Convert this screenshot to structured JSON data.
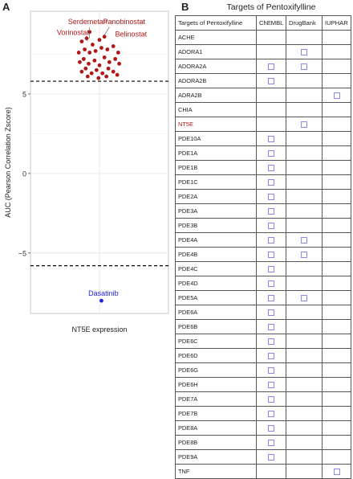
{
  "panels": {
    "a": "A",
    "b": "B"
  },
  "chart_data": {
    "type": "scatter",
    "xlabel": "NT5E expression",
    "ylabel": "AUC (Pearson Correlation Zscore)",
    "ylim": [
      -8.8,
      10.2
    ],
    "yticks": [
      -5,
      0,
      5
    ],
    "ytick_labels": [
      "−5",
      "0",
      "5"
    ],
    "threshold_lines": [
      5.8,
      -5.8
    ],
    "grid": true,
    "series": [
      {
        "color": "#b01818",
        "points": [
          {
            "x": 0.52,
            "y": 8.3
          },
          {
            "x": 0.57,
            "y": 8.5
          },
          {
            "x": 0.63,
            "y": 8.1
          },
          {
            "x": 0.7,
            "y": 8.4
          },
          {
            "x": 0.49,
            "y": 7.6
          },
          {
            "x": 0.55,
            "y": 7.8
          },
          {
            "x": 0.6,
            "y": 7.6
          },
          {
            "x": 0.66,
            "y": 7.7
          },
          {
            "x": 0.72,
            "y": 7.9
          },
          {
            "x": 0.78,
            "y": 7.8
          },
          {
            "x": 0.84,
            "y": 8.0
          },
          {
            "x": 0.89,
            "y": 7.6
          },
          {
            "x": 0.5,
            "y": 7.0
          },
          {
            "x": 0.54,
            "y": 7.2
          },
          {
            "x": 0.59,
            "y": 6.9
          },
          {
            "x": 0.65,
            "y": 7.1
          },
          {
            "x": 0.7,
            "y": 6.8
          },
          {
            "x": 0.75,
            "y": 7.3
          },
          {
            "x": 0.8,
            "y": 7.0
          },
          {
            "x": 0.86,
            "y": 7.2
          },
          {
            "x": 0.9,
            "y": 6.9
          },
          {
            "x": 0.52,
            "y": 6.4
          },
          {
            "x": 0.56,
            "y": 6.6
          },
          {
            "x": 0.62,
            "y": 6.3
          },
          {
            "x": 0.67,
            "y": 6.5
          },
          {
            "x": 0.73,
            "y": 6.3
          },
          {
            "x": 0.79,
            "y": 6.6
          },
          {
            "x": 0.84,
            "y": 6.4
          },
          {
            "x": 0.88,
            "y": 6.2
          },
          {
            "x": 0.58,
            "y": 6.1
          },
          {
            "x": 0.69,
            "y": 6.0
          },
          {
            "x": 0.77,
            "y": 6.1
          },
          {
            "x": 0.6,
            "y": 8.9
          },
          {
            "x": 0.75,
            "y": 8.6
          }
        ]
      },
      {
        "color": "#2222dd",
        "points": [
          {
            "x": 0.72,
            "y": -8.0
          }
        ]
      }
    ],
    "annotations": [
      {
        "text": "Serdemetan",
        "color": "#b01818",
        "x": 0.58,
        "y": 9.4
      },
      {
        "text": "Panobinostat",
        "color": "#b01818",
        "x": 0.95,
        "y": 9.4
      },
      {
        "text": "Vorinostat",
        "color": "#b01818",
        "x": 0.43,
        "y": 8.7
      },
      {
        "text": "Belinostat",
        "color": "#b01818",
        "x": 1.02,
        "y": 8.6
      },
      {
        "text": "Dasatinib",
        "color": "#2222dd",
        "x": 0.74,
        "y": -7.7
      }
    ]
  },
  "table": {
    "title": "Targets of Pentoxifylline",
    "columns": [
      "Targets of Pentoxifylline",
      "ChEMBL",
      "DrugBank",
      "IUPHAR"
    ],
    "highlight_color": "#b01818",
    "rows": [
      {
        "name": "ACHE",
        "checks": [
          false,
          false,
          false
        ],
        "highlight": false
      },
      {
        "name": "ADORA1",
        "checks": [
          false,
          true,
          false
        ],
        "highlight": false
      },
      {
        "name": "ADORA2A",
        "checks": [
          true,
          true,
          false
        ],
        "highlight": false
      },
      {
        "name": "ADORA2B",
        "checks": [
          true,
          false,
          false
        ],
        "highlight": false
      },
      {
        "name": "ADRA2B",
        "checks": [
          false,
          false,
          true
        ],
        "highlight": false
      },
      {
        "name": "CHIA",
        "checks": [
          false,
          false,
          false
        ],
        "highlight": false
      },
      {
        "name": "NT5E",
        "checks": [
          false,
          true,
          false
        ],
        "highlight": true
      },
      {
        "name": "PDE10A",
        "checks": [
          true,
          false,
          false
        ],
        "highlight": false
      },
      {
        "name": "PDE1A",
        "checks": [
          true,
          false,
          false
        ],
        "highlight": false
      },
      {
        "name": "PDE1B",
        "checks": [
          true,
          false,
          false
        ],
        "highlight": false
      },
      {
        "name": "PDE1C",
        "checks": [
          true,
          false,
          false
        ],
        "highlight": false
      },
      {
        "name": "PDE2A",
        "checks": [
          true,
          false,
          false
        ],
        "highlight": false
      },
      {
        "name": "PDE3A",
        "checks": [
          true,
          false,
          false
        ],
        "highlight": false
      },
      {
        "name": "PDE3B",
        "checks": [
          true,
          false,
          false
        ],
        "highlight": false
      },
      {
        "name": "PDE4A",
        "checks": [
          true,
          true,
          false
        ],
        "highlight": false
      },
      {
        "name": "PDE4B",
        "checks": [
          true,
          true,
          false
        ],
        "highlight": false
      },
      {
        "name": "PDE4C",
        "checks": [
          true,
          false,
          false
        ],
        "highlight": false
      },
      {
        "name": "PDE4D",
        "checks": [
          true,
          false,
          false
        ],
        "highlight": false
      },
      {
        "name": "PDE5A",
        "checks": [
          true,
          true,
          false
        ],
        "highlight": false
      },
      {
        "name": "PDE6A",
        "checks": [
          true,
          false,
          false
        ],
        "highlight": false
      },
      {
        "name": "PDE6B",
        "checks": [
          true,
          false,
          false
        ],
        "highlight": false
      },
      {
        "name": "PDE6C",
        "checks": [
          true,
          false,
          false
        ],
        "highlight": false
      },
      {
        "name": "PDE6D",
        "checks": [
          true,
          false,
          false
        ],
        "highlight": false
      },
      {
        "name": "PDE6G",
        "checks": [
          true,
          false,
          false
        ],
        "highlight": false
      },
      {
        "name": "PDE6H",
        "checks": [
          true,
          false,
          false
        ],
        "highlight": false
      },
      {
        "name": "PDE7A",
        "checks": [
          true,
          false,
          false
        ],
        "highlight": false
      },
      {
        "name": "PDE7B",
        "checks": [
          true,
          false,
          false
        ],
        "highlight": false
      },
      {
        "name": "PDE8A",
        "checks": [
          true,
          false,
          false
        ],
        "highlight": false
      },
      {
        "name": "PDE8B",
        "checks": [
          true,
          false,
          false
        ],
        "highlight": false
      },
      {
        "name": "PDE9A",
        "checks": [
          true,
          false,
          false
        ],
        "highlight": false
      },
      {
        "name": "TNF",
        "checks": [
          false,
          false,
          true
        ],
        "highlight": false
      }
    ]
  }
}
